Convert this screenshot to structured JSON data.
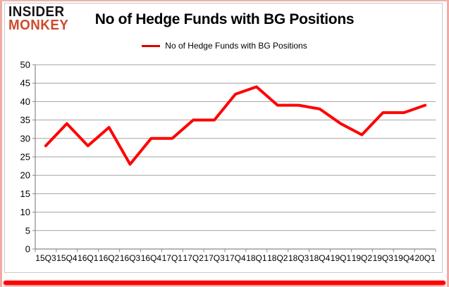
{
  "logo": {
    "line1": "INSIDER",
    "line2": "MONKEY"
  },
  "colors": {
    "line": "#fe0202",
    "legend_swatch": "#db0000",
    "gridline": "#a3a3a3",
    "axis": "#898989",
    "logo_red": "#cf492d",
    "bottom_bar": "#fa0606",
    "frame_border": "#eeaca4"
  },
  "chart_data": {
    "type": "line",
    "title": "No of Hedge Funds with BG Positions",
    "legend": [
      "No of Hedge Funds with BG Positions"
    ],
    "legend_position": "top",
    "grid": true,
    "xlabel": "",
    "ylabel": "",
    "ylim": [
      0,
      50
    ],
    "y_ticks": [
      0,
      5,
      10,
      15,
      20,
      25,
      30,
      35,
      40,
      45,
      50
    ],
    "categories": [
      "15Q3",
      "15Q4",
      "16Q1",
      "16Q2",
      "16Q3",
      "16Q4",
      "17Q1",
      "17Q2",
      "17Q3",
      "17Q4",
      "18Q1",
      "18Q2",
      "18Q3",
      "18Q4",
      "19Q1",
      "19Q2",
      "19Q3",
      "19Q4",
      "20Q1"
    ],
    "series": [
      {
        "name": "No of Hedge Funds with BG Positions",
        "values": [
          28,
          34,
          28,
          33,
          23,
          30,
          30,
          35,
          35,
          42,
          44,
          39,
          39,
          38,
          34,
          31,
          37,
          37,
          39
        ]
      }
    ],
    "line_color": "#fe0202"
  }
}
